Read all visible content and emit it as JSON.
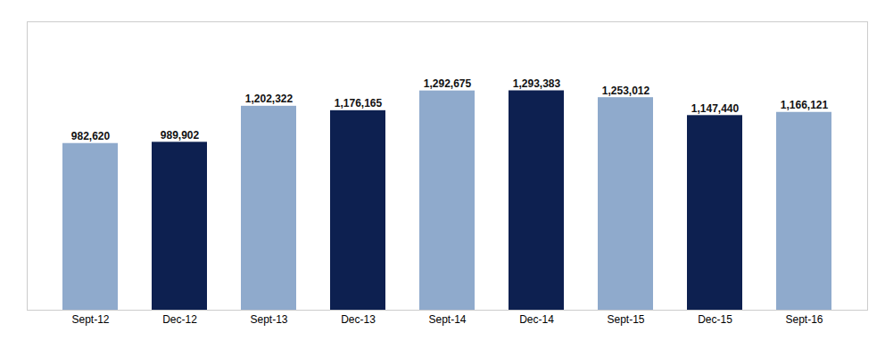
{
  "chart_data": {
    "type": "bar",
    "categories": [
      "Sept-12",
      "Dec-12",
      "Sept-13",
      "Dec-13",
      "Sept-14",
      "Dec-14",
      "Sept-15",
      "Dec-15",
      "Sept-16"
    ],
    "values": [
      982620,
      989902,
      1202322,
      1176165,
      1292675,
      1293383,
      1253012,
      1147440,
      1166121
    ],
    "value_labels": [
      "982,620",
      "989,902",
      "1,202,322",
      "1,176,165",
      "1,292,675",
      "1,293,383",
      "1,253,012",
      "1,147,440",
      "1,166,121"
    ],
    "colors": [
      "#8faacc",
      "#0d2050",
      "#8faacc",
      "#0d2050",
      "#8faacc",
      "#0d2050",
      "#8faacc",
      "#0d2050",
      "#8faacc"
    ],
    "ylim": [
      0,
      1700000
    ],
    "data_labels": true,
    "tick_labels": "x",
    "grid": false
  }
}
